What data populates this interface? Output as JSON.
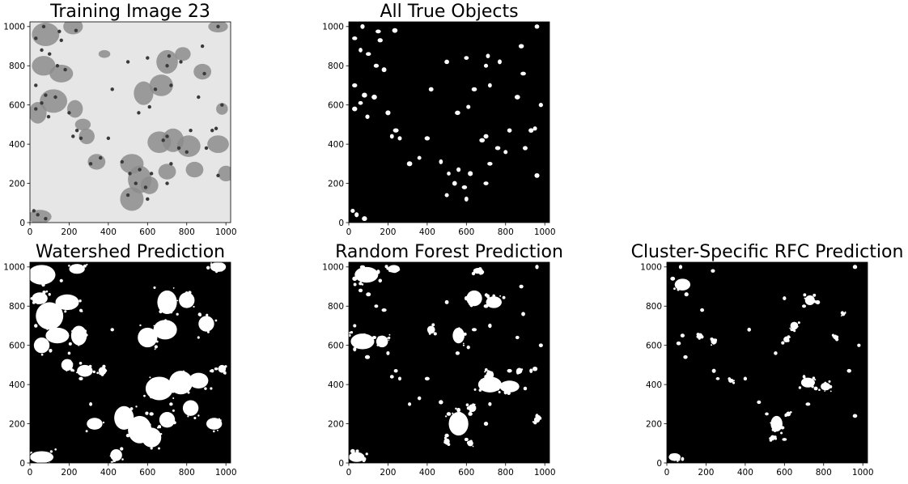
{
  "chart_data": [
    {
      "type": "image",
      "title": "Training Image 23",
      "image": "grayscale micrograph of stained cells",
      "xticks": [
        0,
        200,
        400,
        600,
        800,
        1000
      ],
      "yticks": [
        0,
        200,
        400,
        600,
        800,
        1000
      ],
      "xlim": [
        0,
        1024
      ],
      "ylim": [
        0,
        1024
      ]
    },
    {
      "type": "image",
      "title": "All True Objects",
      "image": "binary mask of true nuclei",
      "xticks": [
        0,
        200,
        400,
        600,
        800,
        1000
      ],
      "yticks": [
        0,
        200,
        400,
        600,
        800,
        1000
      ],
      "xlim": [
        0,
        1024
      ],
      "ylim": [
        0,
        1024
      ]
    },
    {
      "type": "image",
      "title": "Watershed Prediction",
      "image": "binary mask prediction (watershed)",
      "xticks": [
        0,
        200,
        400,
        600,
        800,
        1000
      ],
      "yticks": [
        0,
        200,
        400,
        600,
        800,
        1000
      ],
      "xlim": [
        0,
        1024
      ],
      "ylim": [
        0,
        1024
      ]
    },
    {
      "type": "image",
      "title": "Random Forest Prediction",
      "image": "binary mask prediction (random forest)",
      "xticks": [
        0,
        200,
        400,
        600,
        800,
        1000
      ],
      "yticks": [
        0,
        200,
        400,
        600,
        800,
        1000
      ],
      "xlim": [
        0,
        1024
      ],
      "ylim": [
        0,
        1024
      ]
    },
    {
      "type": "image",
      "title": "Cluster-Specific RFC Prediction",
      "image": "binary mask prediction (cluster-specific RFC)",
      "xticks": [
        0,
        200,
        400,
        600,
        800,
        1000
      ],
      "yticks": [
        0,
        200,
        400,
        600,
        800,
        1000
      ],
      "xlim": [
        0,
        1024
      ],
      "ylim": [
        0,
        1024
      ]
    }
  ],
  "colors": {
    "mask_background": "#000000",
    "mask_foreground": "#ffffff",
    "micrograph_background": "#e6e6e6",
    "cell_fill": "#8c8c8c",
    "nucleus_fill": "#3a3a3a"
  }
}
